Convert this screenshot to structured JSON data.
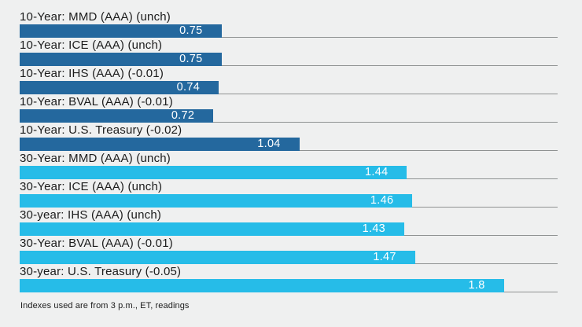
{
  "chart_data": {
    "type": "bar",
    "orientation": "horizontal",
    "title": "",
    "xlabel": "",
    "ylabel": "",
    "xlim": [
      0,
      2.0
    ],
    "grid": false,
    "legend": "none",
    "value_labels_position": "inside-bar-right",
    "rows": [
      {
        "label": "10-Year: MMD (AAA) (unch)",
        "value": 0.75,
        "value_label": "0.75",
        "group": "10-year"
      },
      {
        "label": "10-Year: ICE (AAA) (unch)",
        "value": 0.75,
        "value_label": "0.75",
        "group": "10-year"
      },
      {
        "label": "10-Year: IHS (AAA) (-0.01)",
        "value": 0.74,
        "value_label": "0.74",
        "group": "10-year"
      },
      {
        "label": "10-Year: BVAL (AAA) (-0.01)",
        "value": 0.72,
        "value_label": "0.72",
        "group": "10-year"
      },
      {
        "label": "10-Year: U.S. Treasury (-0.02)",
        "value": 1.04,
        "value_label": "1.04",
        "group": "10-year"
      },
      {
        "label": "30-Year: MMD (AAA) (unch)",
        "value": 1.44,
        "value_label": "1.44",
        "group": "30-year"
      },
      {
        "label": "30-Year: ICE (AAA) (unch)",
        "value": 1.46,
        "value_label": "1.46",
        "group": "30-year"
      },
      {
        "label": "30-year: IHS (AAA) (unch)",
        "value": 1.43,
        "value_label": "1.43",
        "group": "30-year"
      },
      {
        "label": "30-Year: BVAL (AAA) (-0.01)",
        "value": 1.47,
        "value_label": "1.47",
        "group": "30-year"
      },
      {
        "label": "30-year: U.S. Treasury (-0.05)",
        "value": 1.8,
        "value_label": "1.8",
        "group": "30-year"
      }
    ],
    "colors": {
      "10-year": "#24689e",
      "30-year": "#26bce8",
      "background": "#eff0f0",
      "baseline": "#8f9292",
      "label_text": "#1c1c1c",
      "value_text": "#ffffff"
    },
    "footnote": "Indexes used are from 3 p.m., ET, readings"
  }
}
